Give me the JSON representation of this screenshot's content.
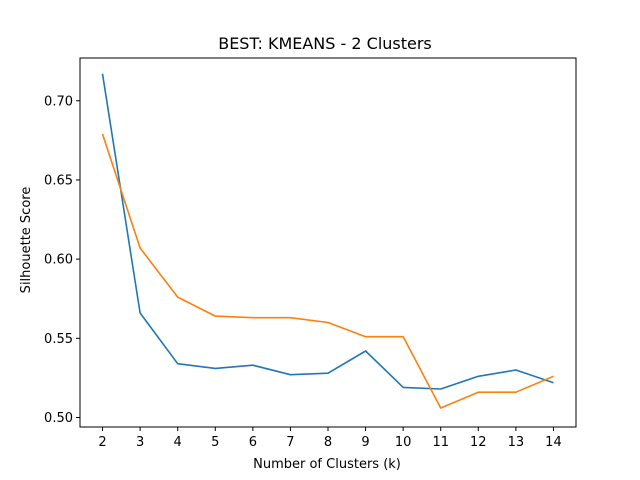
{
  "chart_data": {
    "type": "line",
    "title": "BEST: KMEANS - 2 Clusters",
    "xlabel": "Number of Clusters (k)",
    "ylabel": "Silhouette Score",
    "x": [
      2,
      3,
      4,
      5,
      6,
      7,
      8,
      9,
      10,
      11,
      12,
      13,
      14
    ],
    "xlim": [
      1.4,
      14.6
    ],
    "ylim": [
      0.494,
      0.727
    ],
    "xticks": [
      "2",
      "3",
      "4",
      "5",
      "6",
      "7",
      "8",
      "9",
      "10",
      "11",
      "12",
      "13",
      "14"
    ],
    "yticks": [
      "0.50",
      "0.55",
      "0.60",
      "0.65",
      "0.70"
    ],
    "ytick_values": [
      0.5,
      0.55,
      0.6,
      0.65,
      0.7
    ],
    "grid": false,
    "series": [
      {
        "color": "#1f77b4",
        "values": [
          0.717,
          0.566,
          0.534,
          0.531,
          0.533,
          0.527,
          0.528,
          0.542,
          0.519,
          0.518,
          0.526,
          0.53,
          0.522
        ]
      },
      {
        "color": "#ff7f0e",
        "values": [
          0.679,
          0.607,
          0.576,
          0.564,
          0.563,
          0.563,
          0.56,
          0.551,
          0.551,
          0.506,
          0.516,
          0.516,
          0.526
        ]
      }
    ]
  }
}
